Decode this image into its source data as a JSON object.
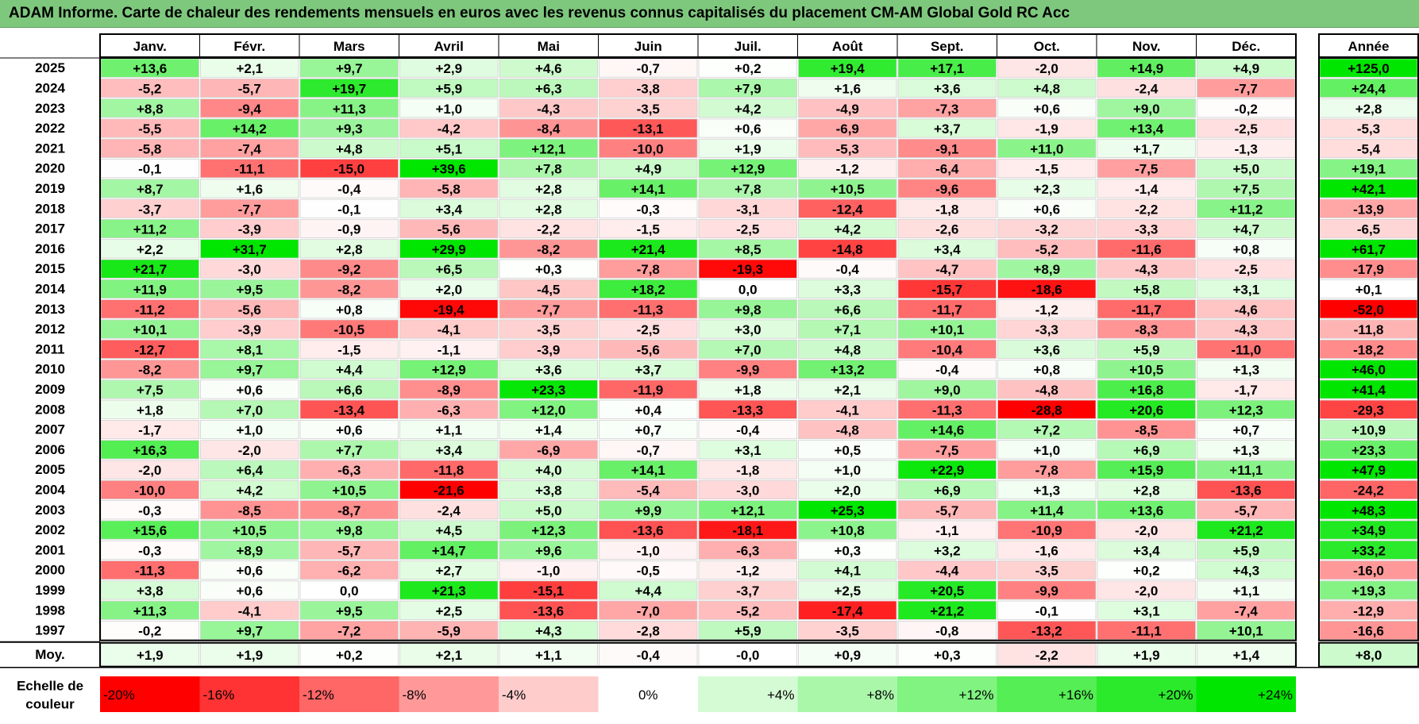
{
  "title": "ADAM Informe. Carte de chaleur des rendements mensuels en euros avec les revenus connus capitalisés du placement CM-AM Global Gold RC Acc",
  "chart_data": {
    "type": "heatmap",
    "title": "ADAM Informe. Carte de chaleur des rendements mensuels en euros avec les revenus connus capitalisés du placement CM-AM Global Gold RC Acc",
    "months": [
      "Janv.",
      "Févr.",
      "Mars",
      "Avril",
      "Mai",
      "Juin",
      "Juil.",
      "Août",
      "Sept.",
      "Oct.",
      "Nov.",
      "Déc."
    ],
    "annual_header": "Année",
    "average_label": "Moy.",
    "rows": [
      {
        "year": "2025",
        "values": [
          "+13,6",
          "+2,1",
          "+9,7",
          "+2,9",
          "+4,6",
          "-0,7",
          "+0,2",
          "+19,4",
          "+17,1",
          "-2,0",
          "+14,9",
          "+4,9"
        ],
        "annual": "+125,0"
      },
      {
        "year": "2024",
        "values": [
          "-5,2",
          "-5,7",
          "+19,7",
          "+5,9",
          "+6,3",
          "-3,8",
          "+7,9",
          "+1,6",
          "+3,6",
          "+4,8",
          "-2,4",
          "-7,7"
        ],
        "annual": "+24,4"
      },
      {
        "year": "2023",
        "values": [
          "+8,8",
          "-9,4",
          "+11,3",
          "+1,0",
          "-4,3",
          "-3,5",
          "+4,2",
          "-4,9",
          "-7,3",
          "+0,6",
          "+9,0",
          "-0,2"
        ],
        "annual": "+2,8"
      },
      {
        "year": "2022",
        "values": [
          "-5,5",
          "+14,2",
          "+9,3",
          "-4,2",
          "-8,4",
          "-13,1",
          "+0,6",
          "-6,9",
          "+3,7",
          "-1,9",
          "+13,4",
          "-2,5"
        ],
        "annual": "-5,3"
      },
      {
        "year": "2021",
        "values": [
          "-5,8",
          "-7,4",
          "+4,8",
          "+5,1",
          "+12,1",
          "-10,0",
          "+1,9",
          "-5,3",
          "-9,1",
          "+11,0",
          "+1,7",
          "-1,3"
        ],
        "annual": "-5,4"
      },
      {
        "year": "2020",
        "values": [
          "-0,1",
          "-11,1",
          "-15,0",
          "+39,6",
          "+7,8",
          "+4,9",
          "+12,9",
          "-1,2",
          "-6,4",
          "-1,5",
          "-7,5",
          "+5,0"
        ],
        "annual": "+19,1"
      },
      {
        "year": "2019",
        "values": [
          "+8,7",
          "+1,6",
          "-0,4",
          "-5,8",
          "+2,8",
          "+14,1",
          "+7,8",
          "+10,5",
          "-9,6",
          "+2,3",
          "-1,4",
          "+7,5"
        ],
        "annual": "+42,1"
      },
      {
        "year": "2018",
        "values": [
          "-3,7",
          "-7,7",
          "-0,1",
          "+3,4",
          "+2,8",
          "-0,3",
          "-3,1",
          "-12,4",
          "-1,8",
          "+0,6",
          "-2,2",
          "+11,2"
        ],
        "annual": "-13,9"
      },
      {
        "year": "2017",
        "values": [
          "+11,2",
          "-3,9",
          "-0,9",
          "-5,6",
          "-2,2",
          "-1,5",
          "-2,5",
          "+4,2",
          "-2,6",
          "-3,2",
          "-3,3",
          "+4,7"
        ],
        "annual": "-6,5"
      },
      {
        "year": "2016",
        "values": [
          "+2,2",
          "+31,7",
          "+2,8",
          "+29,9",
          "-8,2",
          "+21,4",
          "+8,5",
          "-14,8",
          "+3,4",
          "-5,2",
          "-11,6",
          "+0,8"
        ],
        "annual": "+61,7"
      },
      {
        "year": "2015",
        "values": [
          "+21,7",
          "-3,0",
          "-9,2",
          "+6,5",
          "+0,3",
          "-7,8",
          "-19,3",
          "-0,4",
          "-4,7",
          "+8,9",
          "-4,3",
          "-2,5"
        ],
        "annual": "-17,9"
      },
      {
        "year": "2014",
        "values": [
          "+11,9",
          "+9,5",
          "-8,2",
          "+2,0",
          "-4,5",
          "+18,2",
          "0,0",
          "+3,3",
          "-15,7",
          "-18,6",
          "+5,8",
          "+3,1"
        ],
        "annual": "+0,1"
      },
      {
        "year": "2013",
        "values": [
          "-11,2",
          "-5,6",
          "+0,8",
          "-19,4",
          "-7,7",
          "-11,3",
          "+9,8",
          "+6,6",
          "-11,7",
          "-1,2",
          "-11,7",
          "-4,6"
        ],
        "annual": "-52,0"
      },
      {
        "year": "2012",
        "values": [
          "+10,1",
          "-3,9",
          "-10,5",
          "-4,1",
          "-3,5",
          "-2,5",
          "+3,0",
          "+7,1",
          "+10,1",
          "-3,3",
          "-8,3",
          "-4,3"
        ],
        "annual": "-11,8"
      },
      {
        "year": "2011",
        "values": [
          "-12,7",
          "+8,1",
          "-1,5",
          "-1,1",
          "-3,9",
          "-5,6",
          "+7,0",
          "+4,8",
          "-10,4",
          "+3,6",
          "+5,9",
          "-11,0"
        ],
        "annual": "-18,2"
      },
      {
        "year": "2010",
        "values": [
          "-8,2",
          "+9,7",
          "+4,4",
          "+12,9",
          "+3,6",
          "+3,7",
          "-9,9",
          "+13,2",
          "-0,4",
          "+0,8",
          "+10,5",
          "+1,3"
        ],
        "annual": "+46,0"
      },
      {
        "year": "2009",
        "values": [
          "+7,5",
          "+0,6",
          "+6,6",
          "-8,9",
          "+23,3",
          "-11,9",
          "+1,8",
          "+2,1",
          "+9,0",
          "-4,8",
          "+16,8",
          "-1,7"
        ],
        "annual": "+41,4"
      },
      {
        "year": "2008",
        "values": [
          "+1,8",
          "+7,0",
          "-13,4",
          "-6,3",
          "+12,0",
          "+0,4",
          "-13,3",
          "-4,1",
          "-11,3",
          "-28,8",
          "+20,6",
          "+12,3"
        ],
        "annual": "-29,3"
      },
      {
        "year": "2007",
        "values": [
          "-1,7",
          "+1,0",
          "+0,6",
          "+1,1",
          "+1,4",
          "+0,7",
          "-0,4",
          "-4,8",
          "+14,6",
          "+7,2",
          "-8,5",
          "+0,7"
        ],
        "annual": "+10,9"
      },
      {
        "year": "2006",
        "values": [
          "+16,3",
          "-2,0",
          "+7,7",
          "+3,4",
          "-6,9",
          "-0,7",
          "+3,1",
          "+0,5",
          "-7,5",
          "+1,0",
          "+6,9",
          "+1,3"
        ],
        "annual": "+23,3"
      },
      {
        "year": "2005",
        "values": [
          "-2,0",
          "+6,4",
          "-6,3",
          "-11,8",
          "+4,0",
          "+14,1",
          "-1,8",
          "+1,0",
          "+22,9",
          "-7,8",
          "+15,9",
          "+11,1"
        ],
        "annual": "+47,9"
      },
      {
        "year": "2004",
        "values": [
          "-10,0",
          "+4,2",
          "+10,5",
          "-21,6",
          "+3,8",
          "-5,4",
          "-3,0",
          "+2,0",
          "+6,9",
          "+1,3",
          "+2,8",
          "-13,6"
        ],
        "annual": "-24,2"
      },
      {
        "year": "2003",
        "values": [
          "-0,3",
          "-8,5",
          "-8,7",
          "-2,4",
          "+5,0",
          "+9,9",
          "+12,1",
          "+25,3",
          "-5,7",
          "+11,4",
          "+13,6",
          "-5,7"
        ],
        "annual": "+48,3"
      },
      {
        "year": "2002",
        "values": [
          "+15,6",
          "+10,5",
          "+9,8",
          "+4,5",
          "+12,3",
          "-13,6",
          "-18,1",
          "+10,8",
          "-1,1",
          "-10,9",
          "-2,0",
          "+21,2"
        ],
        "annual": "+34,9"
      },
      {
        "year": "2001",
        "values": [
          "-0,3",
          "+8,9",
          "-5,7",
          "+14,7",
          "+9,6",
          "-1,0",
          "-6,3",
          "+0,3",
          "+3,2",
          "-1,6",
          "+3,4",
          "+5,9"
        ],
        "annual": "+33,2"
      },
      {
        "year": "2000",
        "values": [
          "-11,3",
          "+0,6",
          "-6,2",
          "+2,7",
          "-1,0",
          "-0,5",
          "-1,2",
          "+4,1",
          "-4,4",
          "-3,5",
          "+0,2",
          "+4,3"
        ],
        "annual": "-16,0"
      },
      {
        "year": "1999",
        "values": [
          "+3,8",
          "+0,6",
          "0,0",
          "+21,3",
          "-15,1",
          "+4,4",
          "-3,7",
          "+2,5",
          "+20,5",
          "-9,9",
          "-2,0",
          "+1,1"
        ],
        "annual": "+19,3"
      },
      {
        "year": "1998",
        "values": [
          "+11,3",
          "-4,1",
          "+9,5",
          "+2,5",
          "-13,6",
          "-7,0",
          "-5,2",
          "-17,4",
          "+21,2",
          "-0,1",
          "+3,1",
          "-7,4"
        ],
        "annual": "-12,9"
      },
      {
        "year": "1997",
        "values": [
          "-0,2",
          "+9,7",
          "-7,2",
          "-5,9",
          "+4,3",
          "-2,8",
          "+5,9",
          "-3,5",
          "-0,8",
          "-13,2",
          "-11,1",
          "+10,1"
        ],
        "annual": "-16,6"
      }
    ],
    "average": {
      "values": [
        "+1,9",
        "+1,9",
        "+0,2",
        "+2,1",
        "+1,1",
        "-0,4",
        "-0,0",
        "+0,9",
        "+0,3",
        "-2,2",
        "+1,9",
        "+1,4"
      ],
      "annual": "+8,0"
    },
    "scale_label_line1": "Echelle de",
    "scale_label_line2": "couleur",
    "scale": [
      "-20%",
      "-16%",
      "-12%",
      "-8%",
      "-4%",
      "0%",
      "+4%",
      "+8%",
      "+12%",
      "+16%",
      "+20%",
      "+24%"
    ],
    "scale_values": [
      -20,
      -16,
      -12,
      -8,
      -4,
      0,
      4,
      8,
      12,
      16,
      20,
      24
    ],
    "colors": {
      "negative": "#ff0000",
      "neutral": "#ffffff",
      "positive": "#00e600",
      "title_bg": "#7ec87e"
    }
  }
}
